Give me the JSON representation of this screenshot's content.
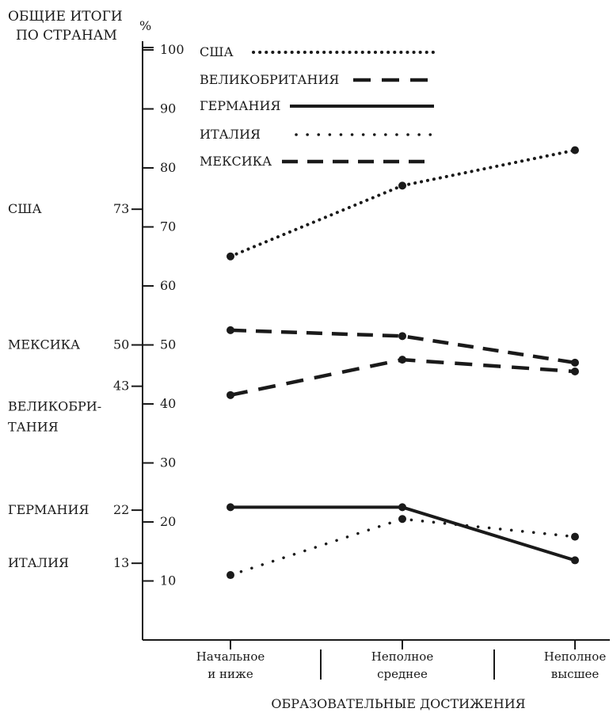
{
  "chart_data": {
    "type": "line",
    "header": {
      "line1": "ОБЩИЕ ИТОГИ",
      "line2": "ПО СТРАНАМ"
    },
    "unit": "%",
    "categories": [
      [
        "Начальное",
        "и ниже"
      ],
      [
        "Неполное",
        "среднее"
      ],
      [
        "Неполное",
        "высшее"
      ]
    ],
    "xlabel": "ОБРАЗОВАТЕЛЬНЫЕ ДОСТИЖЕНИЯ",
    "ylim": [
      0,
      100
    ],
    "yticks": [
      "10",
      "20",
      "30",
      "40",
      "50",
      "60",
      "70",
      "80",
      "90",
      "100"
    ],
    "grid": false,
    "legend_position": "top",
    "series": [
      {
        "name": "США",
        "style": "dotted-dense",
        "values": [
          65,
          77,
          83
        ]
      },
      {
        "name": "ВЕЛИКОБРИТАНИЯ",
        "style": "dashed",
        "values": [
          41.5,
          47.5,
          45.5
        ]
      },
      {
        "name": "ГЕРМАНИЯ",
        "style": "solid",
        "values": [
          22.5,
          22.5,
          13.5
        ]
      },
      {
        "name": "ИТАЛИЯ",
        "style": "dotted-sparse",
        "values": [
          11,
          20.5,
          17.5
        ]
      },
      {
        "name": "МЕКСИКА",
        "style": "dashed-heavy",
        "values": [
          52.5,
          51.5,
          47
        ]
      }
    ],
    "country_totals": [
      {
        "country": "США",
        "value": "73"
      },
      {
        "country": "МЕКСИКА",
        "value": "50"
      },
      {
        "country": "ВЕЛИКОБРИ-|ТАНИЯ",
        "value": "43"
      },
      {
        "country": "ГЕРМАНИЯ",
        "value": "22"
      },
      {
        "country": "ИТАЛИЯ",
        "value": "13"
      }
    ],
    "color": "#1a1a1a"
  }
}
